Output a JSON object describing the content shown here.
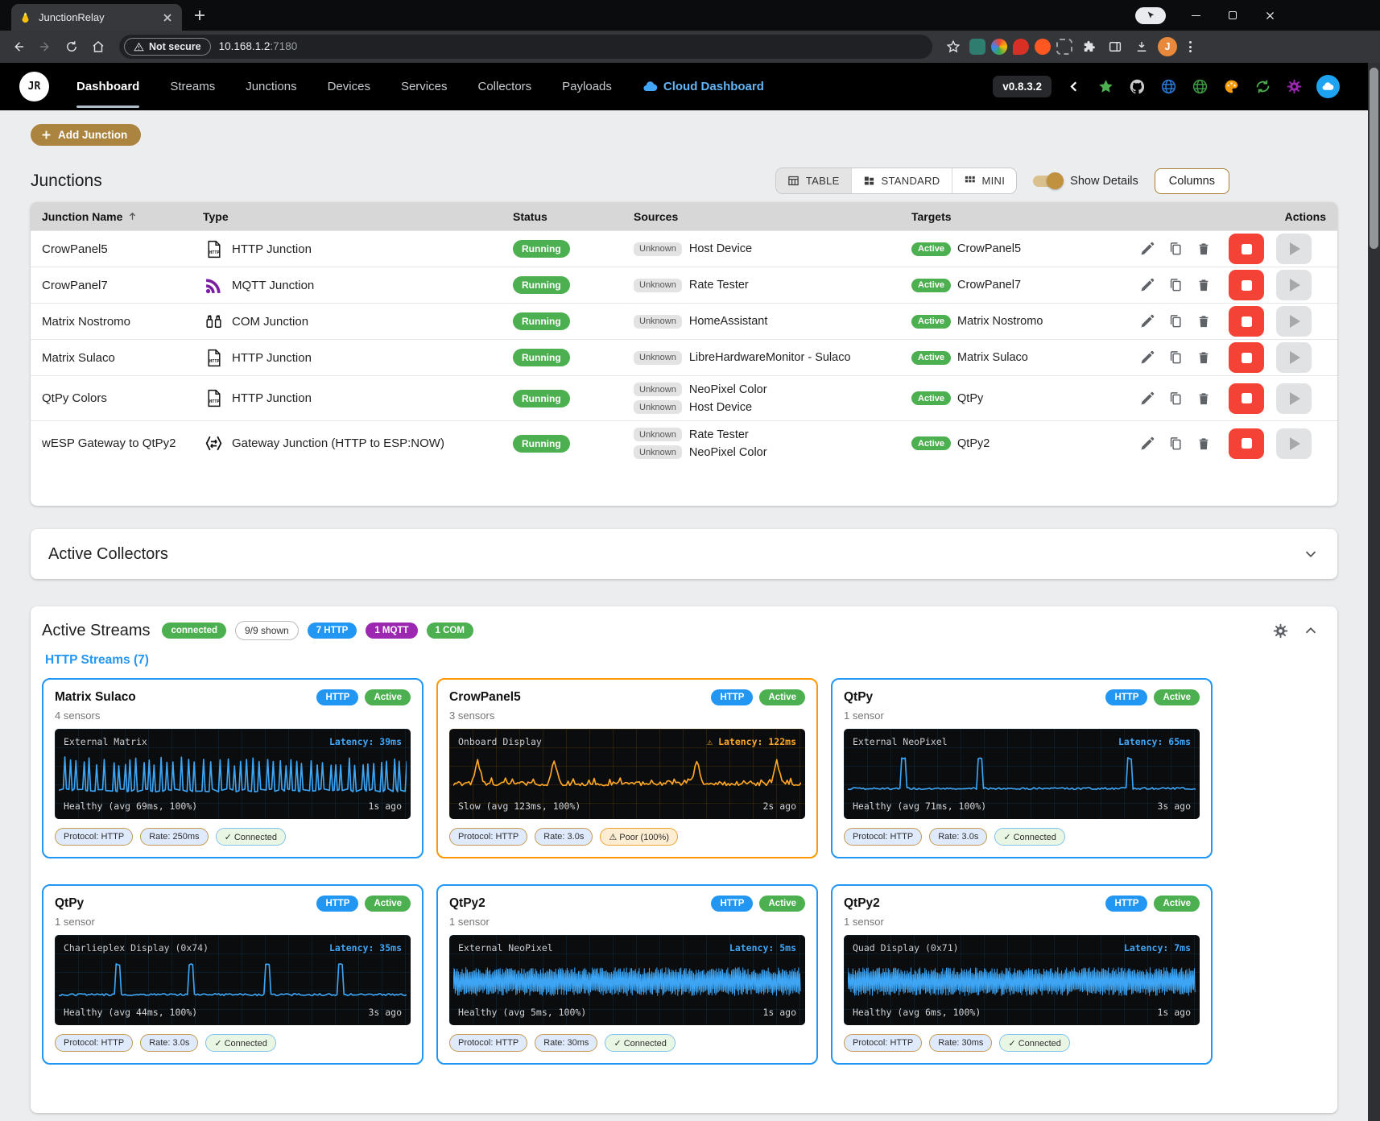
{
  "browser": {
    "tab_title": "JunctionRelay",
    "not_secure": "Not secure",
    "url": "10.168.1.2",
    "port": ":7180",
    "avatar_initial": "J"
  },
  "appbar": {
    "logo": "JR",
    "nav": [
      "Dashboard",
      "Streams",
      "Junctions",
      "Devices",
      "Services",
      "Collectors",
      "Payloads"
    ],
    "cloud": "Cloud Dashboard",
    "version": "v0.8.3.2"
  },
  "actions_bar": {
    "add": "Add Junction"
  },
  "junctions": {
    "title": "Junctions",
    "views": [
      "TABLE",
      "STANDARD",
      "MINI"
    ],
    "show_details": "Show Details",
    "columns_btn": "Columns",
    "headers": [
      "Junction Name",
      "Type",
      "Status",
      "Sources",
      "Targets",
      "Actions"
    ],
    "rows": [
      {
        "name": "CrowPanel5",
        "type": "HTTP Junction",
        "status": "Running",
        "sources": [
          {
            "badge": "Unknown",
            "name": "Host Device"
          }
        ],
        "target_badge": "Active",
        "target": "CrowPanel5"
      },
      {
        "name": "CrowPanel7",
        "type": "MQTT Junction",
        "status": "Running",
        "sources": [
          {
            "badge": "Unknown",
            "name": "Rate Tester"
          }
        ],
        "target_badge": "Active",
        "target": "CrowPanel7"
      },
      {
        "name": "Matrix Nostromo",
        "type": "COM Junction",
        "status": "Running",
        "sources": [
          {
            "badge": "Unknown",
            "name": "HomeAssistant"
          }
        ],
        "target_badge": "Active",
        "target": "Matrix Nostromo"
      },
      {
        "name": "Matrix Sulaco",
        "type": "HTTP Junction",
        "status": "Running",
        "sources": [
          {
            "badge": "Unknown",
            "name": "LibreHardwareMonitor - Sulaco"
          }
        ],
        "target_badge": "Active",
        "target": "Matrix Sulaco"
      },
      {
        "name": "QtPy Colors",
        "type": "HTTP Junction",
        "status": "Running",
        "sources": [
          {
            "badge": "Unknown",
            "name": "NeoPixel Color"
          },
          {
            "badge": "Unknown",
            "name": "Host Device"
          }
        ],
        "target_badge": "Active",
        "target": "QtPy"
      },
      {
        "name": "wESP Gateway to QtPy2",
        "type": "Gateway Junction (HTTP to ESP:NOW)",
        "status": "Running",
        "sources": [
          {
            "badge": "Unknown",
            "name": "Rate Tester"
          },
          {
            "badge": "Unknown",
            "name": "NeoPixel Color"
          }
        ],
        "target_badge": "Active",
        "target": "QtPy2"
      }
    ]
  },
  "collectors": {
    "title": "Active Collectors"
  },
  "streams": {
    "title": "Active Streams",
    "badges": [
      {
        "label": "connected",
        "style": "green"
      },
      {
        "label": "9/9 shown",
        "style": "outline"
      },
      {
        "label": "7 HTTP",
        "style": "blue"
      },
      {
        "label": "1 MQTT",
        "style": "purple"
      },
      {
        "label": "1 COM",
        "style": "green"
      }
    ],
    "group_label": "HTTP Streams (7)",
    "cards": [
      {
        "name": "Matrix Sulaco",
        "sensors": "4 sensors",
        "protocol": "HTTP",
        "state": "Active",
        "accent": "blue",
        "chart": {
          "label": "External Matrix",
          "latency": "Latency: 39ms",
          "warn": false,
          "status": "Healthy (avg 69ms, 100%)",
          "ago": "1s ago",
          "pattern": "spikes",
          "color": "#3da5f4",
          "seed": 11
        },
        "chips": [
          {
            "label": "Protocol: HTTP",
            "style": "info"
          },
          {
            "label": "Rate: 250ms",
            "style": "info"
          },
          {
            "label": "✓ Connected",
            "style": "ok"
          }
        ]
      },
      {
        "name": "CrowPanel5",
        "sensors": "3 sensors",
        "protocol": "HTTP",
        "state": "Active",
        "accent": "orange",
        "chart": {
          "label": "Onboard Display",
          "latency": "⚠ Latency: 122ms",
          "warn": true,
          "status": "Slow (avg 123ms, 100%)",
          "ago": "2s ago",
          "pattern": "peaks",
          "spikes": [
            0.07,
            0.29,
            0.7,
            0.93
          ],
          "color": "#ffa726",
          "seed": 22
        },
        "chips": [
          {
            "label": "Protocol: HTTP",
            "style": "info"
          },
          {
            "label": "Rate: 3.0s",
            "style": "info"
          },
          {
            "label": "⚠ Poor (100%)",
            "style": "warn"
          }
        ]
      },
      {
        "name": "QtPy",
        "sensors": "1 sensor",
        "protocol": "HTTP",
        "state": "Active",
        "accent": "blue",
        "chart": {
          "label": "External NeoPixel",
          "latency": "Latency: 65ms",
          "warn": false,
          "status": "Healthy (avg 71ms, 100%)",
          "ago": "3s ago",
          "pattern": "fewspikes",
          "spikes": [
            0.16,
            0.38,
            0.81
          ],
          "color": "#3da5f4",
          "seed": 33
        },
        "chips": [
          {
            "label": "Protocol: HTTP",
            "style": "info"
          },
          {
            "label": "Rate: 3.0s",
            "style": "info"
          },
          {
            "label": "✓ Connected",
            "style": "ok"
          }
        ]
      },
      {
        "name": "QtPy",
        "sensors": "1 sensor",
        "protocol": "HTTP",
        "state": "Active",
        "accent": "blue",
        "chart": {
          "label": "Charlieplex Display (0x74)",
          "latency": "Latency: 35ms",
          "warn": false,
          "status": "Healthy (avg 44ms, 100%)",
          "ago": "3s ago",
          "pattern": "fewspikes",
          "spikes": [
            0.17,
            0.38,
            0.6,
            0.81
          ],
          "color": "#3da5f4",
          "seed": 44
        },
        "chips": [
          {
            "label": "Protocol: HTTP",
            "style": "info"
          },
          {
            "label": "Rate: 3.0s",
            "style": "info"
          },
          {
            "label": "✓ Connected",
            "style": "ok"
          }
        ]
      },
      {
        "name": "QtPy2",
        "sensors": "1 sensor",
        "protocol": "HTTP",
        "state": "Active",
        "accent": "blue",
        "chart": {
          "label": "External NeoPixel",
          "latency": "Latency: 5ms",
          "warn": false,
          "status": "Healthy (avg 5ms, 100%)",
          "ago": "1s ago",
          "pattern": "band",
          "color": "#3da5f4",
          "seed": 55
        },
        "chips": [
          {
            "label": "Protocol: HTTP",
            "style": "info"
          },
          {
            "label": "Rate: 30ms",
            "style": "info"
          },
          {
            "label": "✓ Connected",
            "style": "ok"
          }
        ]
      },
      {
        "name": "QtPy2",
        "sensors": "1 sensor",
        "protocol": "HTTP",
        "state": "Active",
        "accent": "blue",
        "chart": {
          "label": "Quad Display (0x71)",
          "latency": "Latency: 7ms",
          "warn": false,
          "status": "Healthy (avg 6ms, 100%)",
          "ago": "1s ago",
          "pattern": "band",
          "color": "#3da5f4",
          "seed": 66
        },
        "chips": [
          {
            "label": "Protocol: HTTP",
            "style": "info"
          },
          {
            "label": "Rate: 30ms",
            "style": "info"
          },
          {
            "label": "✓ Connected",
            "style": "ok"
          }
        ]
      }
    ]
  },
  "colors": {
    "accent_gold": "#ab843f",
    "status_green": "#4caf50",
    "http_blue": "#2196f3",
    "mqtt_purple": "#9c27b0",
    "warn_orange": "#ff9800",
    "stop_red": "#f44336"
  }
}
